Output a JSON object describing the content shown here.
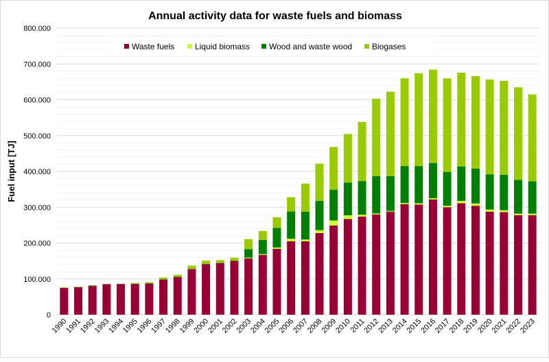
{
  "chart_data": {
    "type": "bar",
    "stacked": true,
    "title": "Annual activity data for waste fuels and biomass",
    "xlabel": "",
    "ylabel": "Fuel input [TJ]",
    "ylim": [
      0,
      800000
    ],
    "yticks": [
      0,
      100000,
      200000,
      300000,
      400000,
      500000,
      600000,
      700000,
      800000
    ],
    "ytick_labels": [
      "0",
      "100.000",
      "200.000",
      "300.000",
      "400.000",
      "500.000",
      "600.000",
      "700.000",
      "800.000"
    ],
    "grid": true,
    "legend_position": "top",
    "categories": [
      "1990",
      "1991",
      "1992",
      "1993",
      "1994",
      "1995",
      "1996",
      "1997",
      "1998",
      "1999",
      "2000",
      "2001",
      "2002",
      "2003",
      "2004",
      "2005",
      "2006",
      "2007",
      "2008",
      "2009",
      "2010",
      "2011",
      "2012",
      "2013",
      "2014",
      "2015",
      "2016",
      "2017",
      "2018",
      "2019",
      "2020",
      "2021",
      "2022",
      "2023"
    ],
    "series": [
      {
        "name": "Waste fuels",
        "color": "#990033",
        "values": [
          74600,
          76500,
          80000,
          85000,
          85500,
          85500,
          86800,
          98000,
          105000,
          127000,
          141000,
          144000,
          150000,
          157000,
          167000,
          184000,
          205000,
          205000,
          228000,
          249000,
          267000,
          274000,
          280000,
          287700,
          308800,
          307500,
          321500,
          300000,
          311000,
          304000,
          287700,
          286500,
          278000,
          278000
        ]
      },
      {
        "name": "Liquid biomass",
        "color": "#ccff33",
        "values": [
          0,
          0,
          0,
          0,
          0,
          0,
          0,
          0,
          0,
          0,
          0,
          0,
          0,
          2000,
          2000,
          3500,
          7000,
          5000,
          8000,
          14000,
          10500,
          5000,
          2600,
          1900,
          3200,
          3500,
          3500,
          4000,
          6700,
          6600,
          5800,
          5000,
          4000,
          4000
        ]
      },
      {
        "name": "Wood and waste wood",
        "color": "#008000",
        "values": [
          500,
          500,
          1500,
          500,
          500,
          1000,
          1000,
          1000,
          1000,
          1000,
          1000,
          1000,
          1000,
          24000,
          40000,
          55000,
          76000,
          77600,
          82000,
          86000,
          91500,
          94000,
          104000,
          97400,
          103000,
          104000,
          98600,
          94700,
          96300,
          97100,
          98500,
          98900,
          94500,
          90600
        ]
      },
      {
        "name": "Biogases",
        "color": "#99cc00",
        "values": [
          1000,
          1000,
          500,
          500,
          500,
          2100,
          2800,
          5000,
          5500,
          9000,
          9000,
          7500,
          8000,
          28000,
          25000,
          29500,
          40000,
          78400,
          103600,
          119000,
          135600,
          165000,
          216400,
          235600,
          244700,
          259000,
          260400,
          261000,
          261600,
          258300,
          264500,
          262600,
          258300,
          242400
        ]
      }
    ]
  }
}
